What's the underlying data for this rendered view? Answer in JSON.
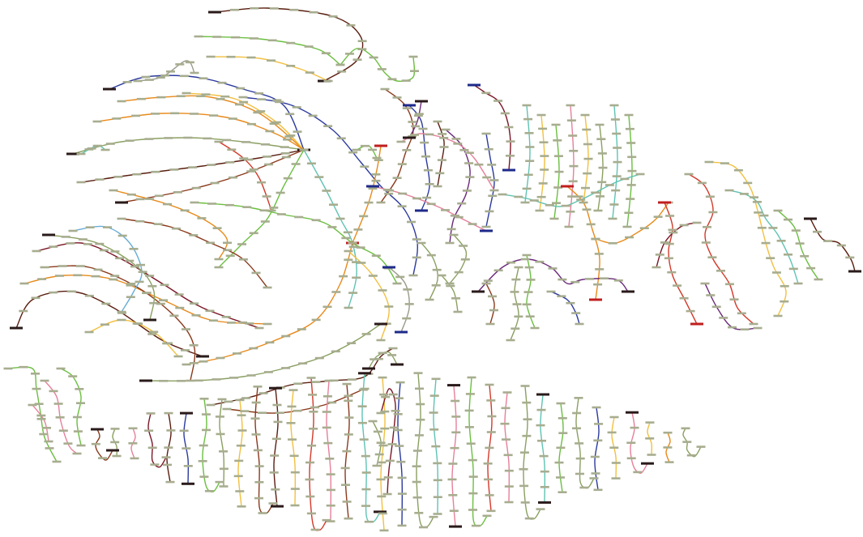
{
  "diagram": {
    "background": "#ffffff",
    "edge_colors": {
      "dark_brown": "#5a1e10",
      "brown": "#8a3a1c",
      "maroon": "#7a1626",
      "orange": "#e88a1a",
      "gold": "#f2c040",
      "green": "#6bbf3f",
      "olive": "#8aa060",
      "teal": "#5fc3b2",
      "sky": "#6aaed6",
      "navy": "#2c3a9e",
      "red": "#d23a2a",
      "pink": "#e6809a",
      "purple": "#6a2a7a",
      "gray": "#9a9a8a"
    },
    "node_colors": {
      "default": "#a7ad8f",
      "dark": "#2a1a1a",
      "green": "#3d8c3d",
      "red": "#c01e1e",
      "navy": "#1e2a8a",
      "purple": "#5e1a5e"
    }
  }
}
